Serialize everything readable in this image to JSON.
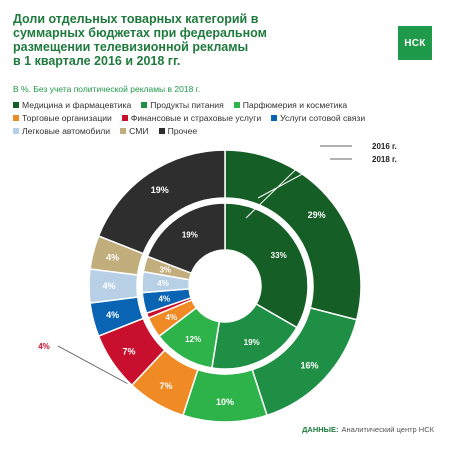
{
  "header": {
    "title": "Доли отдельных товарных категорий в\nсуммарных бюджетах при федеральном\nразмещении телевизионной рекламы\nв 1 квартале 2016 и 2018 гг.",
    "subtitle": "В %. Без учета политической рекламы в 2018 г.",
    "logo_text": "НСК"
  },
  "source": {
    "label": "ДАННЫЕ:",
    "text": "Аналитический центр НСК"
  },
  "colors": {
    "brand": "#1f9a4a",
    "title": "#1f7a3d"
  },
  "chart_data": {
    "type": "pie",
    "title": "Доли отдельных товарных категорий в суммарных бюджетах при федеральном размещении телевизионной рекламы в 1 квартале 2016 и 2018 гг.",
    "unit": "%",
    "categories": [
      "Медицина и фармацевтика",
      "Продукты питания",
      "Парфюмерия и косметика",
      "Торговые организации",
      "Финансовые и страховые услуги",
      "Услуги сотовой связи",
      "Легковые автомобили",
      "СМИ",
      "Прочее"
    ],
    "category_colors": [
      "#155e26",
      "#1f8f45",
      "#2db34a",
      "#f08a24",
      "#c8102e",
      "#0a64b4",
      "#b8d0e6",
      "#c2ad7c",
      "#2e2e2e"
    ],
    "series": [
      {
        "name": "2016 г.",
        "ring": "inner",
        "values": [
          33,
          19,
          12,
          4,
          1,
          4,
          4,
          3,
          19
        ],
        "labels": [
          "33%",
          "19%",
          "12%",
          "4%",
          "",
          "4%",
          "4%",
          "3%",
          "19%"
        ]
      },
      {
        "name": "2018 г.",
        "ring": "outer",
        "values": [
          29,
          16,
          10,
          7,
          7,
          4,
          4,
          4,
          19
        ],
        "labels": [
          "29%",
          "16%",
          "10%",
          "7%",
          "7%",
          "4%",
          "4%",
          "4%",
          "19%"
        ]
      }
    ],
    "callout_label": "4%",
    "ring_labels": [
      "2016 г.",
      "2018 г."
    ]
  }
}
